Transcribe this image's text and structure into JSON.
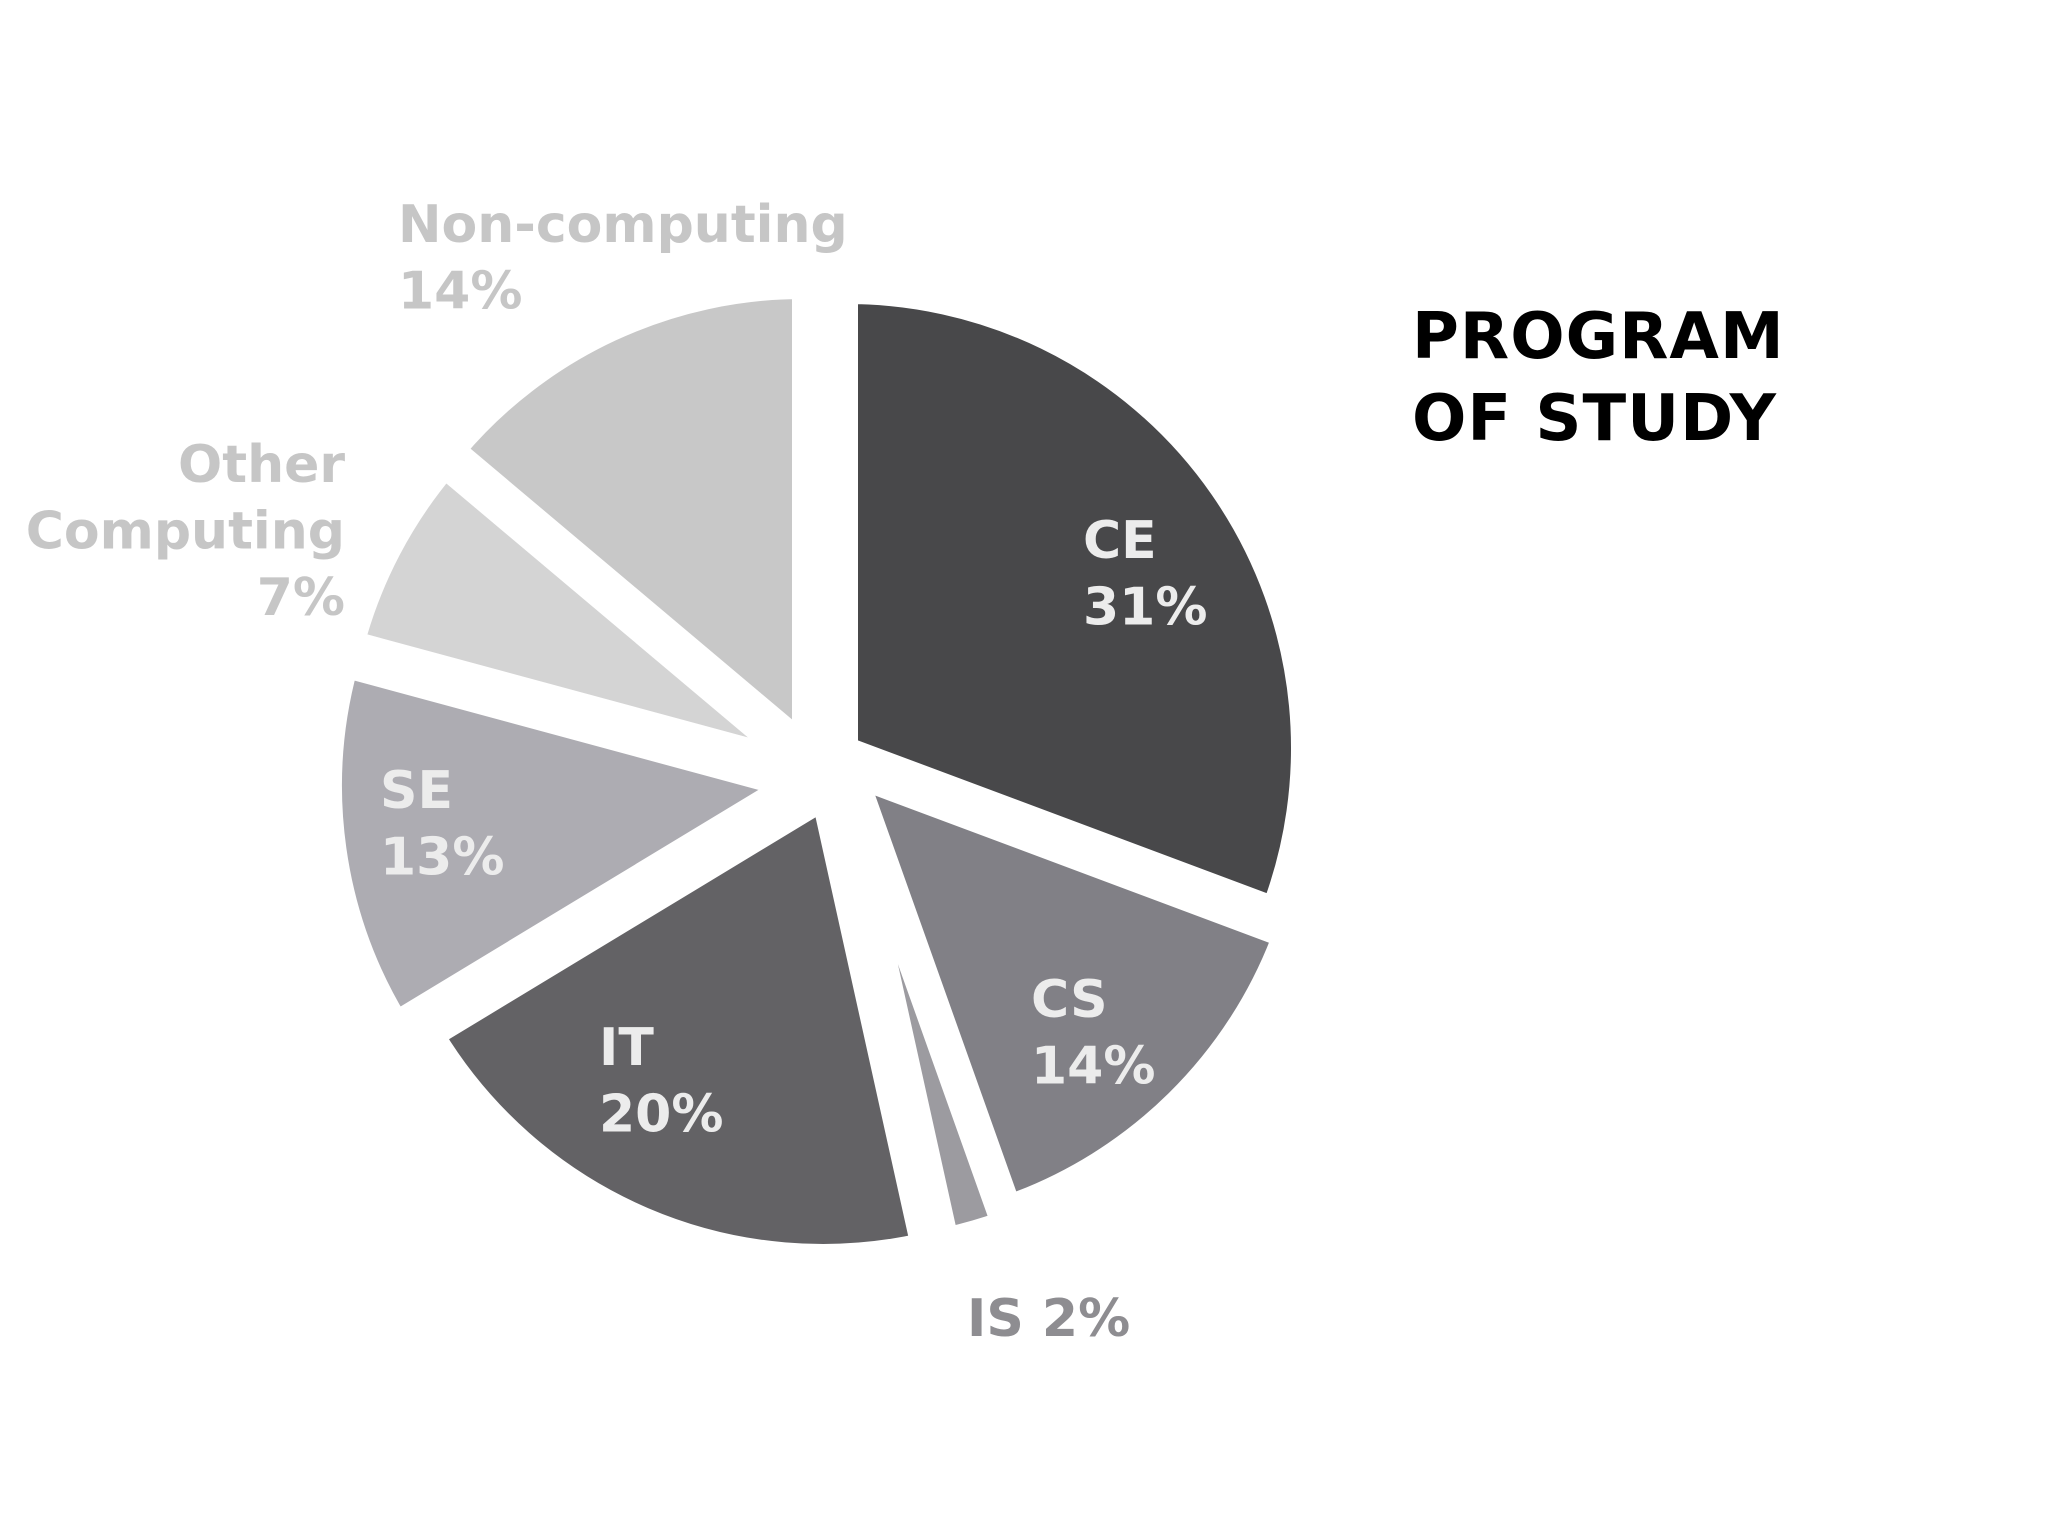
{
  "chart_data": {
    "type": "pie",
    "title_lines": [
      "PROGRAM",
      "OF STUDY"
    ],
    "slices": [
      {
        "name": "CE",
        "percent_label": "31%",
        "value": 31,
        "color": "#48484a",
        "label_color": "#ececec"
      },
      {
        "name": "CS",
        "percent_label": "14%",
        "value": 14,
        "color": "#818086",
        "label_color": "#ececec"
      },
      {
        "name": "IS",
        "percent_label": "2%",
        "value": 2,
        "color": "#9c9ba0",
        "label_color": "#8e8d91"
      },
      {
        "name": "IT",
        "percent_label": "20%",
        "value": 20,
        "color": "#636265",
        "label_color": "#ececec"
      },
      {
        "name": "SE",
        "percent_label": "13%",
        "value": 13,
        "color": "#adacb2",
        "label_color": "#ececec"
      },
      {
        "name": "Other Computing",
        "name_lines": [
          "Other",
          "Computing"
        ],
        "percent_label": "7%",
        "value": 7,
        "color": "#d4d4d4",
        "label_color": "#c6c6c6"
      },
      {
        "name": "Non-computing",
        "percent_label": "14%",
        "value": 14,
        "color": "#c8c8c8",
        "label_color": "#c6c6c6"
      }
    ],
    "grid": false,
    "legend": "none"
  }
}
